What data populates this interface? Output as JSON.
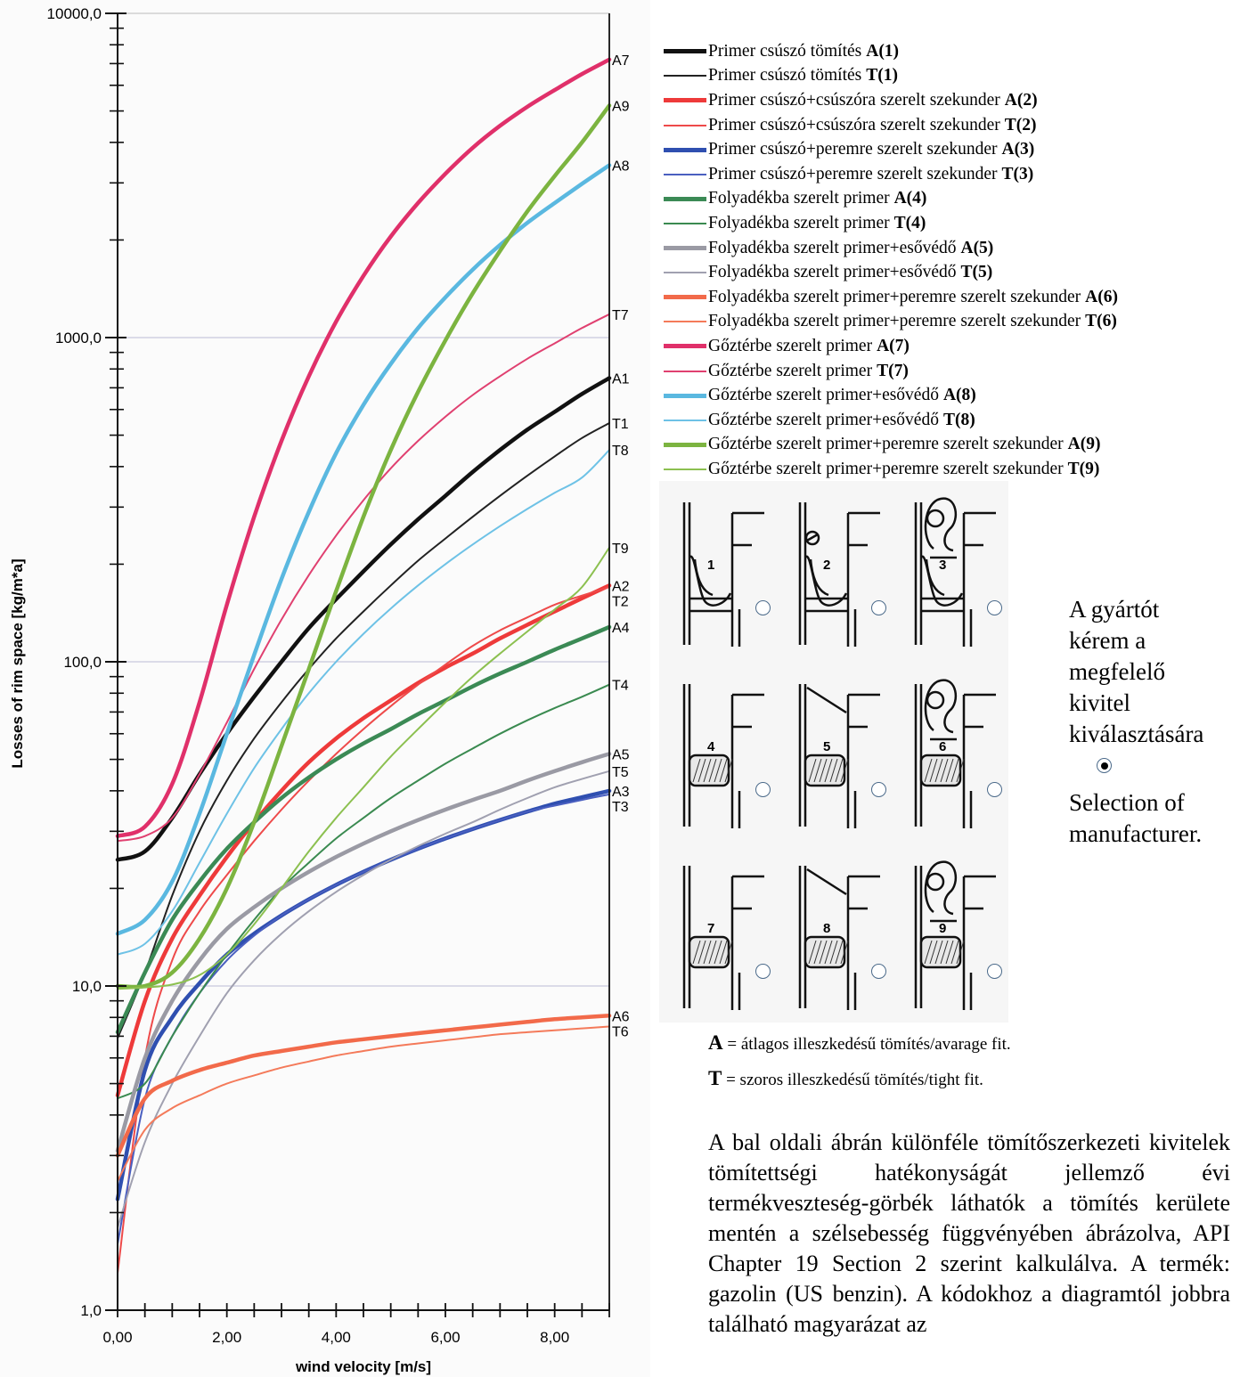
{
  "chart_data": {
    "type": "line",
    "ylabel": "Losses of rim space [kg/m*a]",
    "xlabel": "wind velocity [m/s]",
    "yscale": "log",
    "ylim": [
      1,
      10000
    ],
    "xlim": [
      0,
      9
    ],
    "x_tick_labels": [
      "0,00",
      "2,00",
      "4,00",
      "6,00",
      "8,00"
    ],
    "y_tick_labels": [
      "1,0",
      "10,0",
      "100,0",
      "1000,0",
      "10000,0"
    ],
    "grid": "horizontal at decades",
    "x": [
      0,
      0.5,
      1,
      1.5,
      2,
      2.5,
      3,
      3.5,
      4,
      4.5,
      5,
      5.5,
      6,
      6.5,
      7,
      7.5,
      8,
      8.5,
      9
    ],
    "series": [
      {
        "name": "A1",
        "color": "#111111",
        "weight": "thick",
        "values": [
          24.5,
          26,
          33,
          45,
          60,
          78,
          100,
          127,
          156,
          190,
          230,
          275,
          325,
          385,
          450,
          520,
          590,
          670,
          750
        ]
      },
      {
        "name": "T1",
        "color": "#222222",
        "weight": "thin",
        "values": [
          6.9,
          11,
          19,
          30,
          43,
          58,
          75,
          95,
          118,
          143,
          172,
          205,
          240,
          280,
          325,
          375,
          430,
          490,
          545
        ]
      },
      {
        "name": "A2",
        "color": "#ee3a3a",
        "weight": "thick",
        "values": [
          4.6,
          9,
          14,
          19,
          25,
          32,
          40,
          49,
          58,
          67,
          76,
          86,
          96,
          106,
          118,
          130,
          143,
          157,
          172
        ]
      },
      {
        "name": "T2",
        "color": "#ee4a4a",
        "weight": "thin",
        "values": [
          1.3,
          6,
          12,
          17,
          22,
          28,
          35,
          43,
          52,
          62,
          73,
          85,
          98,
          112,
          125,
          137,
          150,
          160,
          170
        ]
      },
      {
        "name": "A3",
        "color": "#2f4fb0",
        "weight": "thick",
        "values": [
          2.2,
          5.5,
          8,
          10.2,
          12.5,
          14.5,
          16.5,
          18.5,
          20.5,
          22.5,
          24.5,
          26.5,
          28.5,
          30.5,
          32.5,
          34.5,
          36.5,
          38.2,
          40
        ]
      },
      {
        "name": "T3",
        "color": "#4a5fc0",
        "weight": "thin",
        "values": [
          1.6,
          4.5,
          7,
          9.5,
          12,
          14.3,
          16.5,
          18.5,
          20.5,
          22.5,
          24.5,
          26.5,
          28.5,
          30.5,
          32.5,
          34.5,
          36,
          37.5,
          39
        ]
      },
      {
        "name": "A4",
        "color": "#3b8a55",
        "weight": "thick",
        "values": [
          7.2,
          11,
          16,
          21,
          26.5,
          32,
          38,
          44,
          50,
          56,
          62,
          69,
          76,
          84,
          92,
          100,
          109,
          118,
          128
        ]
      },
      {
        "name": "T4",
        "color": "#3a8a50",
        "weight": "thin",
        "values": [
          4.5,
          5,
          7,
          9.5,
          12.5,
          16,
          20,
          24,
          28.5,
          33,
          38,
          43,
          48.5,
          54,
          60,
          66,
          72,
          78,
          85
        ]
      },
      {
        "name": "A5",
        "color": "#9a9aa4",
        "weight": "thick",
        "values": [
          3.1,
          6,
          9,
          12,
          15,
          17.5,
          20,
          22.5,
          25,
          27.5,
          30,
          32.5,
          35,
          37.5,
          40,
          43,
          46,
          49,
          52
        ]
      },
      {
        "name": "T5",
        "color": "#a0a0b0",
        "weight": "thin",
        "values": [
          1.8,
          3.3,
          5,
          7,
          9.5,
          12,
          14.5,
          17,
          19.5,
          22,
          24.5,
          27,
          29.5,
          32,
          35,
          38,
          41,
          43.5,
          46
        ]
      },
      {
        "name": "A6",
        "color": "#f26a4a",
        "weight": "thick",
        "values": [
          3.0,
          4.5,
          5.1,
          5.5,
          5.8,
          6.1,
          6.3,
          6.5,
          6.7,
          6.85,
          7.0,
          7.15,
          7.3,
          7.45,
          7.6,
          7.75,
          7.9,
          8.0,
          8.1
        ]
      },
      {
        "name": "T6",
        "color": "#f47a5a",
        "weight": "thin",
        "values": [
          2.5,
          3.6,
          4.2,
          4.6,
          5.0,
          5.3,
          5.6,
          5.85,
          6.1,
          6.3,
          6.5,
          6.65,
          6.8,
          6.95,
          7.1,
          7.2,
          7.3,
          7.4,
          7.5
        ]
      },
      {
        "name": "A7",
        "color": "#e0306a",
        "weight": "thick",
        "values": [
          29,
          31,
          42,
          75,
          150,
          280,
          480,
          760,
          1120,
          1550,
          2050,
          2600,
          3200,
          3850,
          4500,
          5150,
          5800,
          6500,
          7200
        ]
      },
      {
        "name": "T7",
        "color": "#e04070",
        "weight": "thin",
        "values": [
          28,
          29,
          33,
          45,
          65,
          95,
          135,
          185,
          245,
          315,
          395,
          480,
          570,
          665,
          760,
          860,
          960,
          1070,
          1180
        ]
      },
      {
        "name": "A8",
        "color": "#5ab8e0",
        "weight": "thick",
        "values": [
          14.5,
          16,
          21,
          34,
          60,
          105,
          180,
          290,
          440,
          620,
          830,
          1070,
          1330,
          1620,
          1930,
          2260,
          2600,
          2980,
          3400
        ]
      },
      {
        "name": "T8",
        "color": "#6ec2e6",
        "weight": "thin",
        "values": [
          12.5,
          13.5,
          17,
          24,
          34,
          47,
          62,
          80,
          100,
          122,
          146,
          172,
          200,
          230,
          262,
          296,
          332,
          370,
          450
        ]
      },
      {
        "name": "A9",
        "color": "#7cb440",
        "weight": "thick",
        "values": [
          10,
          10,
          11,
          14,
          20,
          32,
          55,
          95,
          165,
          280,
          450,
          680,
          980,
          1370,
          1850,
          2450,
          3150,
          4000,
          5200
        ]
      },
      {
        "name": "T9",
        "color": "#8cc050",
        "weight": "thin",
        "values": [
          9.8,
          9.9,
          10.1,
          10.8,
          12.5,
          15.5,
          20,
          26,
          33,
          41,
          51,
          62,
          75,
          90,
          106,
          124,
          145,
          170,
          225
        ]
      }
    ]
  },
  "legend": [
    {
      "text": "Primer csúszó tömítés",
      "code": "A(1)",
      "color": "#111111",
      "weight": "thick"
    },
    {
      "text": "Primer csúszó tömítés",
      "code": "T(1)",
      "color": "#222222",
      "weight": "thin"
    },
    {
      "text": "Primer csúszó+csúszóra szerelt szekunder",
      "code": "A(2)",
      "color": "#ee3a3a",
      "weight": "thick"
    },
    {
      "text": "Primer csúszó+csúszóra szerelt szekunder",
      "code": "T(2)",
      "color": "#ee4a4a",
      "weight": "thin"
    },
    {
      "text": "Primer csúszó+peremre szerelt szekunder",
      "code": "A(3)",
      "color": "#2f4fb0",
      "weight": "thick"
    },
    {
      "text": "Primer csúszó+peremre szerelt szekunder",
      "code": "T(3)",
      "color": "#4a5fc0",
      "weight": "thin"
    },
    {
      "text": "Folyadékba szerelt primer",
      "code": "A(4)",
      "color": "#3b8a55",
      "weight": "thick"
    },
    {
      "text": "Folyadékba szerelt primer",
      "code": "T(4)",
      "color": "#3a8a50",
      "weight": "thin"
    },
    {
      "text": "Folyadékba szerelt primer+esővédő",
      "code": "A(5)",
      "color": "#9a9aa4",
      "weight": "thick"
    },
    {
      "text": "Folyadékba szerelt primer+esővédő",
      "code": "T(5)",
      "color": "#a0a0b0",
      "weight": "thin"
    },
    {
      "text": "Folyadékba szerelt primer+peremre szerelt szekunder",
      "code": "A(6)",
      "color": "#f26a4a",
      "weight": "thick"
    },
    {
      "text": "Folyadékba szerelt primer+peremre szerelt szekunder",
      "code": "T(6)",
      "color": "#f47a5a",
      "weight": "thin"
    },
    {
      "text": "Gőztérbe szerelt primer",
      "code": "A(7)",
      "color": "#e0306a",
      "weight": "thick"
    },
    {
      "text": "Gőztérbe szerelt primer",
      "code": "T(7)",
      "color": "#e04070",
      "weight": "thin"
    },
    {
      "text": "Gőztérbe szerelt primer+esővédő",
      "code": "A(8)",
      "color": "#5ab8e0",
      "weight": "thick"
    },
    {
      "text": "Gőztérbe szerelt primer+esővédő",
      "code": "T(8)",
      "color": "#6ec2e6",
      "weight": "thin"
    },
    {
      "text": "Gőztérbe szerelt primer+peremre szerelt szekunder",
      "code": "A(9)",
      "color": "#7cb440",
      "weight": "thick"
    },
    {
      "text": "Gőztérbe szerelt primer+peremre szerelt szekunder",
      "code": "T(9)",
      "color": "#8cc050",
      "weight": "thin"
    }
  ],
  "seal_options": [
    {
      "number": "1",
      "style": "primary",
      "selected": false
    },
    {
      "number": "2",
      "style": "primary-wiper",
      "selected": false
    },
    {
      "number": "3",
      "style": "primary-rim",
      "selected": false
    },
    {
      "number": "4",
      "style": "liquid",
      "selected": false
    },
    {
      "number": "5",
      "style": "liquid-shield",
      "selected": false
    },
    {
      "number": "6",
      "style": "liquid-rim",
      "selected": false
    },
    {
      "number": "7",
      "style": "vapor",
      "selected": false
    },
    {
      "number": "8",
      "style": "vapor-shield",
      "selected": false
    },
    {
      "number": "9",
      "style": "vapor-rim",
      "selected": false
    }
  ],
  "side_note": {
    "lines": [
      "A gyártót",
      "kérem a",
      "megfelelő",
      "kivitel",
      "kiválasztására"
    ],
    "manufacturer_radio_selected": true,
    "selection_lines": [
      "Selection of",
      "manufacturer."
    ]
  },
  "definitions": {
    "a_code": "A",
    "a_text": "= átlagos illeszkedésű tömítés/avarage fit.",
    "t_code": "T",
    "t_text": "= szoros illeszkedésű tömítés/tight fit."
  },
  "paragraph": "A bal oldali ábrán különféle tömítőszerkezeti kivitelek tömítettségi hatékonyságát jellemző évi termékveszteség-görbék láthatók a tömítés kerülete mentén a szélsebesség függvényében ábrázolva, API Chapter 19 Section 2 szerint kalkulálva. A termék: gazolin (US benzin). A kódokhoz a diagramtól jobbra található magyarázat az"
}
